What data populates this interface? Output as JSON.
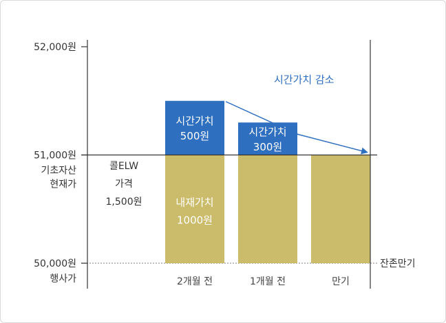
{
  "chart_data": {
    "type": "bar",
    "title": "",
    "ylim": [
      50000,
      52000
    ],
    "y_ticks": [
      {
        "value": 52000,
        "label": "52,000원",
        "sub": []
      },
      {
        "value": 51000,
        "label": "51,000원",
        "sub": [
          "기초자산",
          "현재가"
        ]
      },
      {
        "value": 50000,
        "label": "50,000원",
        "sub": [
          "행사가"
        ]
      }
    ],
    "categories": [
      "2개월 전",
      "1개월 전",
      "만기"
    ],
    "series": [
      {
        "name": "내재가치",
        "color": "#cbbc6c",
        "values": [
          1000,
          1000,
          1000
        ]
      },
      {
        "name": "시간가치",
        "color": "#2f6fc0",
        "values": [
          500,
          300,
          0
        ]
      }
    ],
    "bar_labels": [
      {
        "intrinsic": [
          "내재가치",
          "1000원"
        ],
        "time": [
          "시간가치",
          "500원"
        ]
      },
      {
        "intrinsic": [],
        "time": [
          "시간가치",
          "300원"
        ]
      },
      {
        "intrinsic": [],
        "time": []
      }
    ],
    "side_label": [
      "콜ELW",
      "가격",
      "1,500원"
    ],
    "right_label": "잔존만기",
    "annotation": "시간가치 감소",
    "colors": {
      "axis": "#333333",
      "arrow": "#2f6fc0",
      "dotted": "#999999"
    }
  }
}
